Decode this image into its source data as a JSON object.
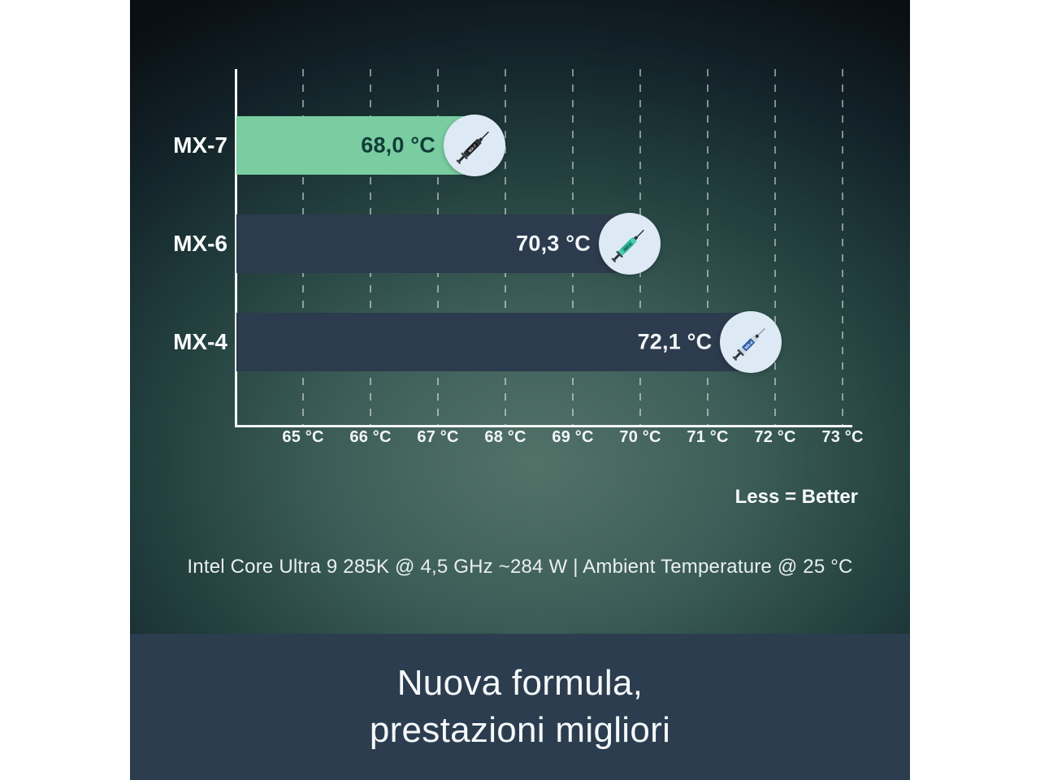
{
  "chart_data": {
    "type": "bar",
    "orientation": "horizontal",
    "title": "",
    "categories": [
      "MX-7",
      "MX-6",
      "MX-4"
    ],
    "values": [
      68.0,
      70.3,
      72.1
    ],
    "value_labels": [
      "68,0 °C",
      "70,3 °C",
      "72,1 °C"
    ],
    "bar_colors": [
      "#79cda0",
      "#2c3b4d",
      "#2c3b4d"
    ],
    "value_text_colors": [
      "#113c38",
      "#f2f6f8",
      "#f2f6f8"
    ],
    "x_ticks": [
      65,
      66,
      67,
      68,
      69,
      70,
      71,
      72,
      73
    ],
    "x_tick_labels": [
      "65 °C",
      "66 °C",
      "67 °C",
      "68 °C",
      "69 °C",
      "70 °C",
      "71 °C",
      "72 °C",
      "73 °C"
    ],
    "xlim": [
      64,
      73
    ],
    "unit": "°C",
    "grid": "dashed-vertical",
    "legend_position": "none",
    "note": "Less = Better",
    "subtitle": "Intel Core Ultra 9 285K @ 4,5 GHz ~284 W | Ambient Temperature @ 25 °C",
    "end_circle_color": "#dde9f4",
    "syringes": [
      {
        "label": "MX-7",
        "body": "#303539",
        "band": "#17191c",
        "rod": "#24282c",
        "flange": "#3d4349",
        "needle": "#1f2326",
        "text_color": "#e8eaec"
      },
      {
        "label": "MX-6",
        "body": "#45cfae",
        "band": "#2fb396",
        "rod": "#2b3136",
        "flange": "#3a4147",
        "needle": "#2b3136",
        "text_color": "#0e3a31"
      },
      {
        "label": "MX-4",
        "body": "#ccd6df",
        "band": "#2e5fa8",
        "rod": "#2e343a",
        "flange": "#3d444b",
        "needle": "#8d99a3",
        "text_color": "#ffffff"
      }
    ]
  },
  "banner": {
    "line1": "Nuova formula,",
    "line2": "prestazioni migliori",
    "bg_color": "#2b3d4e"
  },
  "colors": {
    "page_background": "#ffffff",
    "chart_glow": "#527268",
    "chart_background_dark": "#0a0f14",
    "axis": "#f4f7f8"
  }
}
